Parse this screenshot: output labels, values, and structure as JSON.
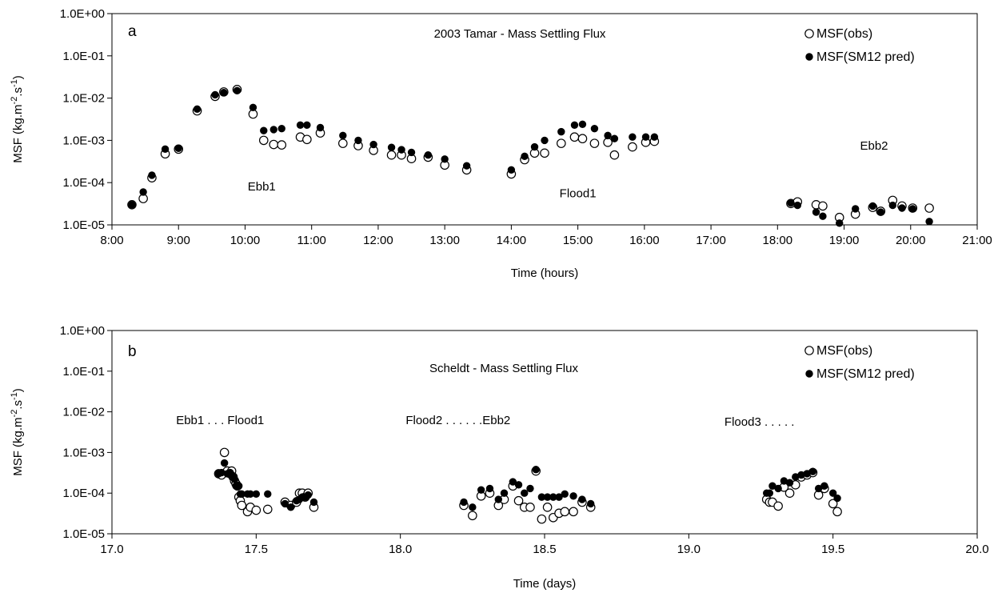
{
  "chart_data": [
    {
      "type": "scatter",
      "panel_label": "a",
      "title": "2003 Tamar - Mass Settling Flux",
      "xlabel": "Time (hours)",
      "ylabel_main": "MSF (kg.m",
      "ylabel_exp1": "-2",
      "ylabel_mid": ".s",
      "ylabel_exp2": "-1",
      "ylabel_end": ")",
      "xlim": [
        8,
        21
      ],
      "ylim": [
        1e-05,
        1
      ],
      "yscale": "log",
      "x_ticks": [
        8,
        9,
        10,
        11,
        12,
        13,
        14,
        15,
        16,
        17,
        18,
        19,
        20,
        21
      ],
      "x_tick_labels": [
        "8:00",
        "9:00",
        "10:00",
        "11:00",
        "12:00",
        "13:00",
        "14:00",
        "15:00",
        "16:00",
        "17:00",
        "18:00",
        "19:00",
        "20:00",
        "21:00"
      ],
      "y_ticks": [
        1e-05,
        0.0001,
        0.001,
        0.01,
        0.1,
        1
      ],
      "y_tick_labels": [
        "1.0E-05",
        "1.0E-04",
        "1.0E-03",
        "1.0E-02",
        "1.0E-01",
        "1.0E+00"
      ],
      "legend": {
        "placement": "top-right",
        "entries": [
          "MSF(obs)",
          "MSF(SM12 pred)"
        ]
      },
      "annotations": [
        {
          "text": "Ebb1",
          "x": 10.25,
          "y": 6.5e-05
        },
        {
          "text": "Flood1",
          "x": 15.0,
          "y": 4.5e-05
        },
        {
          "text": "Ebb2",
          "x": 19.45,
          "y": 0.0006
        }
      ],
      "series": [
        {
          "name": "MSF(obs)",
          "marker": "open-circle",
          "x": [
            8.3,
            8.47,
            8.6,
            8.8,
            9.0,
            9.28,
            9.55,
            9.68,
            9.88,
            10.12,
            10.28,
            10.43,
            10.55,
            10.83,
            10.93,
            11.13,
            11.47,
            11.7,
            11.93,
            12.2,
            12.35,
            12.5,
            12.75,
            13.0,
            13.33,
            14.0,
            14.2,
            14.35,
            14.5,
            14.75,
            14.95,
            15.07,
            15.25,
            15.45,
            15.55,
            15.82,
            16.02,
            16.15,
            18.2,
            18.3,
            18.58,
            18.68,
            18.93,
            19.17,
            19.43,
            19.55,
            19.73,
            19.87,
            20.03,
            20.28
          ],
          "y": [
            3e-05,
            4.2e-05,
            0.00013,
            0.00048,
            0.00062,
            0.005,
            0.011,
            0.014,
            0.016,
            0.0042,
            0.001,
            0.0008,
            0.00078,
            0.0012,
            0.00105,
            0.0015,
            0.00085,
            0.00075,
            0.00058,
            0.00045,
            0.00045,
            0.00037,
            0.0004,
            0.00026,
            0.0002,
            0.00016,
            0.00035,
            0.0005,
            0.0005,
            0.00085,
            0.0012,
            0.0011,
            0.00085,
            0.0009,
            0.00045,
            0.0007,
            0.0009,
            0.00095,
            3.2e-05,
            3.5e-05,
            3e-05,
            2.8e-05,
            1.5e-05,
            1.8e-05,
            2.6e-05,
            2.1e-05,
            3.8e-05,
            2.8e-05,
            2.5e-05,
            2.5e-05
          ]
        },
        {
          "name": "MSF(SM12 pred)",
          "marker": "filled-circle",
          "x": [
            8.3,
            8.47,
            8.6,
            8.8,
            9.0,
            9.28,
            9.55,
            9.68,
            9.88,
            10.12,
            10.28,
            10.43,
            10.55,
            10.83,
            10.93,
            11.13,
            11.47,
            11.7,
            11.93,
            12.2,
            12.35,
            12.5,
            12.75,
            13.0,
            13.33,
            14.0,
            14.2,
            14.35,
            14.5,
            14.75,
            14.95,
            15.07,
            15.25,
            15.45,
            15.55,
            15.82,
            16.02,
            16.15,
            18.2,
            18.3,
            18.58,
            18.68,
            18.93,
            19.17,
            19.43,
            19.55,
            19.73,
            19.87,
            20.03,
            20.28
          ],
          "y": [
            3e-05,
            6e-05,
            0.00015,
            0.00062,
            0.00065,
            0.0055,
            0.012,
            0.0135,
            0.015,
            0.006,
            0.0017,
            0.0018,
            0.0019,
            0.0023,
            0.0023,
            0.002,
            0.0013,
            0.001,
            0.0008,
            0.00068,
            0.0006,
            0.00052,
            0.00045,
            0.00036,
            0.00025,
            0.0002,
            0.00042,
            0.0007,
            0.001,
            0.0016,
            0.0023,
            0.0024,
            0.0019,
            0.0013,
            0.0011,
            0.0012,
            0.0012,
            0.0012,
            3.3e-05,
            2.9e-05,
            2e-05,
            1.6e-05,
            1.1e-05,
            2.4e-05,
            2.8e-05,
            2e-05,
            2.9e-05,
            2.5e-05,
            2.4e-05,
            1.2e-05
          ]
        }
      ]
    },
    {
      "type": "scatter",
      "panel_label": "b",
      "title": "Scheldt - Mass Settling Flux",
      "xlabel": "Time (days)",
      "ylabel_main": "MSF (kg.m",
      "ylabel_exp1": "-2",
      "ylabel_mid": ".s",
      "ylabel_exp2": "-1",
      "ylabel_end": ")",
      "xlim": [
        17.0,
        20.0
      ],
      "ylim": [
        1e-05,
        1
      ],
      "yscale": "log",
      "x_ticks": [
        17.0,
        17.5,
        18.0,
        18.5,
        19.0,
        19.5,
        20.0
      ],
      "x_tick_labels": [
        "17.0",
        "17.5",
        "18.0",
        "18.5",
        "19.0",
        "19.5",
        "20.0"
      ],
      "y_ticks": [
        1e-05,
        0.0001,
        0.001,
        0.01,
        0.1,
        1
      ],
      "y_tick_labels": [
        "1.0E-05",
        "1.0E-04",
        "1.0E-03",
        "1.0E-02",
        "1.0E-01",
        "1.0E+00"
      ],
      "legend": {
        "placement": "top-right",
        "entries": [
          "MSF(obs)",
          "MSF(SM12 pred)"
        ]
      },
      "annotations": [
        {
          "text": "Ebb1 . . .  Flood1",
          "x": 17.375,
          "y": 0.005
        },
        {
          "text": "Flood2 . . . . . .Ebb2",
          "x": 18.2,
          "y": 0.005
        },
        {
          "text": "Flood3 . . . . .",
          "x": 19.245,
          "y": 0.0045
        }
      ],
      "series": [
        {
          "name": "MSF(obs)",
          "marker": "open-circle",
          "x": [
            17.37,
            17.38,
            17.39,
            17.4,
            17.41,
            17.415,
            17.42,
            17.425,
            17.43,
            17.435,
            17.44,
            17.445,
            17.45,
            17.47,
            17.48,
            17.5,
            17.54,
            17.6,
            17.62,
            17.64,
            17.65,
            17.66,
            17.67,
            17.68,
            17.7,
            18.22,
            18.25,
            18.28,
            18.31,
            18.34,
            18.36,
            18.39,
            18.41,
            18.43,
            18.45,
            18.47,
            18.49,
            18.51,
            18.53,
            18.55,
            18.57,
            18.6,
            18.63,
            18.66,
            19.27,
            19.28,
            19.29,
            19.31,
            19.33,
            19.35,
            19.37,
            19.39,
            19.41,
            19.43,
            19.45,
            19.47,
            19.5,
            19.515
          ],
          "y": [
            0.0003,
            0.00028,
            0.001,
            0.00035,
            0.0003,
            0.00035,
            0.00025,
            0.0002,
            0.00017,
            0.00015,
            8e-05,
            6.5e-05,
            5e-05,
            3.5e-05,
            4.5e-05,
            3.8e-05,
            4e-05,
            6e-05,
            5e-05,
            6e-05,
            0.0001,
            0.0001,
            8e-05,
            0.0001,
            4.5e-05,
            5e-05,
            2.8e-05,
            8.5e-05,
            0.0001,
            5e-05,
            7e-05,
            0.00015,
            6.5e-05,
            4.5e-05,
            4.5e-05,
            0.00035,
            2.3e-05,
            4.5e-05,
            2.5e-05,
            3.2e-05,
            3.5e-05,
            3.5e-05,
            6e-05,
            4.5e-05,
            7e-05,
            6e-05,
            6e-05,
            4.8e-05,
            0.00014,
            0.0001,
            0.00016,
            0.00025,
            0.00028,
            0.00032,
            9e-05,
            0.00013,
            5.5e-05,
            3.5e-05
          ]
        },
        {
          "name": "MSF(SM12 pred)",
          "marker": "filled-circle",
          "x": [
            17.37,
            17.38,
            17.39,
            17.4,
            17.41,
            17.415,
            17.42,
            17.425,
            17.43,
            17.435,
            17.44,
            17.445,
            17.45,
            17.47,
            17.48,
            17.5,
            17.54,
            17.6,
            17.62,
            17.64,
            17.65,
            17.66,
            17.67,
            17.68,
            17.7,
            18.22,
            18.25,
            18.28,
            18.31,
            18.34,
            18.36,
            18.39,
            18.41,
            18.43,
            18.45,
            18.47,
            18.49,
            18.51,
            18.53,
            18.55,
            18.57,
            18.6,
            18.63,
            18.66,
            19.27,
            19.28,
            19.29,
            19.31,
            19.33,
            19.35,
            19.37,
            19.39,
            19.41,
            19.43,
            19.45,
            19.47,
            19.5,
            19.515
          ],
          "y": [
            0.0003,
            0.00032,
            0.00055,
            0.0003,
            0.00032,
            0.00028,
            0.00025,
            0.00022,
            0.00015,
            0.00015,
            0.00015,
            9.5e-05,
            9.5e-05,
            9.5e-05,
            9.5e-05,
            9.5e-05,
            9.5e-05,
            5.5e-05,
            4.5e-05,
            6.5e-05,
            7e-05,
            8e-05,
            8e-05,
            9e-05,
            6e-05,
            6e-05,
            4.5e-05,
            0.00012,
            0.00013,
            7e-05,
            0.0001,
            0.00019,
            0.00016,
            0.0001,
            0.00013,
            0.00038,
            8e-05,
            8e-05,
            8e-05,
            8e-05,
            9.5e-05,
            8.5e-05,
            7e-05,
            5.5e-05,
            0.0001,
            0.0001,
            0.00015,
            0.00013,
            0.0002,
            0.00018,
            0.00025,
            0.00028,
            0.0003,
            0.00034,
            0.00013,
            0.00015,
            0.0001,
            7.5e-05
          ]
        }
      ]
    }
  ]
}
